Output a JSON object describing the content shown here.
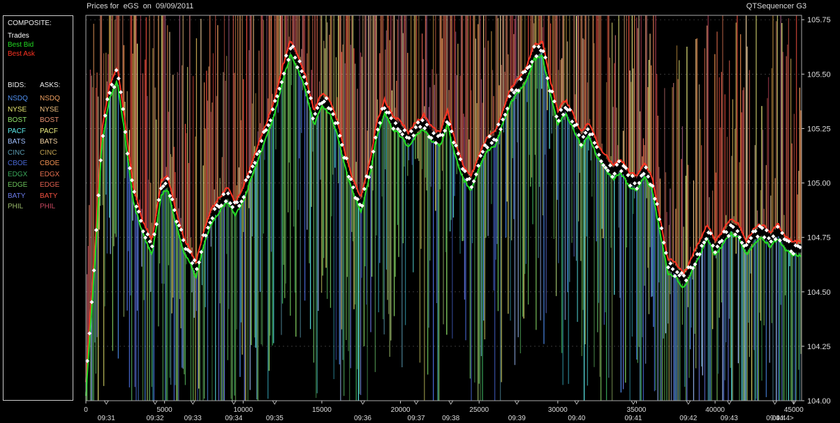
{
  "header": {
    "title": "Prices for  eGS  on  09/09/2011",
    "brand": "QTSequencer G3"
  },
  "legend": {
    "composite_label": "COMPOSITE:",
    "composite": [
      {
        "label": "Trades",
        "color": "#ffffff"
      },
      {
        "label": "Best Bid",
        "color": "#22dd22"
      },
      {
        "label": "Best Ask",
        "color": "#ff3322"
      }
    ],
    "bids_label": "BIDS:",
    "asks_label": "ASKS:",
    "bids": [
      {
        "label": "NSDQ",
        "color": "#4f8ff0"
      },
      {
        "label": "NYSE",
        "color": "#e8e870"
      },
      {
        "label": "BOST",
        "color": "#8ee26a"
      },
      {
        "label": "PACF",
        "color": "#5ef0f0"
      },
      {
        "label": "BATS",
        "color": "#a0c0ff"
      },
      {
        "label": "CINC",
        "color": "#5a9ab0"
      },
      {
        "label": "CBOE",
        "color": "#4a6ad8"
      },
      {
        "label": "EDGX",
        "color": "#3aa85a"
      },
      {
        "label": "EDGE",
        "color": "#6ac05a"
      },
      {
        "label": "BATY",
        "color": "#6a7ae8"
      },
      {
        "label": "PHIL",
        "color": "#9aba6a"
      }
    ],
    "asks": [
      {
        "label": "NSDQ",
        "color": "#f0a060"
      },
      {
        "label": "NYSE",
        "color": "#f0c080"
      },
      {
        "label": "BOST",
        "color": "#e89070"
      },
      {
        "label": "PACF",
        "color": "#f0f080"
      },
      {
        "label": "BATS",
        "color": "#f0d0a0"
      },
      {
        "label": "CINC",
        "color": "#c0a050"
      },
      {
        "label": "CBOE",
        "color": "#f09050"
      },
      {
        "label": "EDGX",
        "color": "#e87050"
      },
      {
        "label": "EDGE",
        "color": "#e06050"
      },
      {
        "label": "BATY",
        "color": "#f05040"
      },
      {
        "label": "PHIL",
        "color": "#c84860"
      }
    ]
  },
  "chart_data": {
    "type": "scatter",
    "title": "Prices for  eGS  on  09/09/2011",
    "xlim": [
      0,
      45500
    ],
    "ylim": [
      104.0,
      105.77
    ],
    "x_ticks": [
      0,
      5000,
      10000,
      15000,
      20000,
      25000,
      30000,
      35000,
      40000,
      45000
    ],
    "y_ticks": [
      104.0,
      104.25,
      104.5,
      104.75,
      105.0,
      105.25,
      105.5,
      105.75
    ],
    "y_tick_labels": [
      "104.00",
      "104.25",
      "104.50",
      "104.75",
      "105.00",
      "105.25",
      "105.50",
      "105.75"
    ],
    "time_ticks": [
      {
        "x": 1300,
        "label": "09:31"
      },
      {
        "x": 4400,
        "label": "09:32"
      },
      {
        "x": 6800,
        "label": "09:33"
      },
      {
        "x": 9400,
        "label": "09:34"
      },
      {
        "x": 12000,
        "label": "09:35"
      },
      {
        "x": 17600,
        "label": "09:36"
      },
      {
        "x": 21000,
        "label": "09:37"
      },
      {
        "x": 23200,
        "label": "09:38"
      },
      {
        "x": 27400,
        "label": "09:39"
      },
      {
        "x": 31200,
        "label": "09:40"
      },
      {
        "x": 34800,
        "label": "09:41"
      },
      {
        "x": 38300,
        "label": "09:42"
      },
      {
        "x": 40900,
        "label": "09:43"
      },
      {
        "x": 43800,
        "label": "09:44"
      },
      {
        "x": 45000,
        "label": "09:44>"
      }
    ],
    "trade_path": [
      [
        0,
        104.06
      ],
      [
        600,
        104.7
      ],
      [
        1000,
        105.2
      ],
      [
        1500,
        105.42
      ],
      [
        2000,
        105.5
      ],
      [
        2400,
        105.3
      ],
      [
        3000,
        104.95
      ],
      [
        3600,
        104.8
      ],
      [
        4200,
        104.7
      ],
      [
        4800,
        104.98
      ],
      [
        5200,
        105.0
      ],
      [
        5700,
        104.85
      ],
      [
        6200,
        104.72
      ],
      [
        6700,
        104.65
      ],
      [
        7000,
        104.6
      ],
      [
        7500,
        104.75
      ],
      [
        8000,
        104.85
      ],
      [
        8500,
        104.9
      ],
      [
        9000,
        104.95
      ],
      [
        9500,
        104.88
      ],
      [
        10000,
        104.95
      ],
      [
        10500,
        105.05
      ],
      [
        11000,
        105.15
      ],
      [
        11500,
        105.25
      ],
      [
        12000,
        105.35
      ],
      [
        12500,
        105.5
      ],
      [
        13000,
        105.62
      ],
      [
        13500,
        105.55
      ],
      [
        14000,
        105.45
      ],
      [
        14500,
        105.3
      ],
      [
        15000,
        105.38
      ],
      [
        15500,
        105.35
      ],
      [
        16000,
        105.25
      ],
      [
        16500,
        105.1
      ],
      [
        17000,
        104.98
      ],
      [
        17500,
        104.9
      ],
      [
        18000,
        105.05
      ],
      [
        18500,
        105.25
      ],
      [
        19000,
        105.35
      ],
      [
        19500,
        105.28
      ],
      [
        20000,
        105.25
      ],
      [
        20500,
        105.2
      ],
      [
        21000,
        105.25
      ],
      [
        21500,
        105.28
      ],
      [
        22000,
        105.22
      ],
      [
        22500,
        105.2
      ],
      [
        23000,
        105.3
      ],
      [
        23500,
        105.15
      ],
      [
        24000,
        105.05
      ],
      [
        24500,
        105.0
      ],
      [
        25000,
        105.1
      ],
      [
        25500,
        105.18
      ],
      [
        26000,
        105.2
      ],
      [
        26500,
        105.3
      ],
      [
        27000,
        105.4
      ],
      [
        27500,
        105.45
      ],
      [
        28000,
        105.5
      ],
      [
        28500,
        105.6
      ],
      [
        29000,
        105.62
      ],
      [
        29500,
        105.45
      ],
      [
        30000,
        105.3
      ],
      [
        30500,
        105.35
      ],
      [
        31000,
        105.28
      ],
      [
        31500,
        105.2
      ],
      [
        32000,
        105.25
      ],
      [
        32500,
        105.15
      ],
      [
        33000,
        105.1
      ],
      [
        33500,
        105.05
      ],
      [
        34000,
        105.08
      ],
      [
        34500,
        105.02
      ],
      [
        35000,
        105.0
      ],
      [
        35500,
        105.06
      ],
      [
        36000,
        105.0
      ],
      [
        36500,
        104.8
      ],
      [
        37000,
        104.62
      ],
      [
        37500,
        104.6
      ],
      [
        38000,
        104.55
      ],
      [
        38500,
        104.62
      ],
      [
        39000,
        104.7
      ],
      [
        39500,
        104.78
      ],
      [
        40000,
        104.7
      ],
      [
        40500,
        104.75
      ],
      [
        41000,
        104.8
      ],
      [
        41500,
        104.78
      ],
      [
        42000,
        104.7
      ],
      [
        42500,
        104.76
      ],
      [
        43000,
        104.78
      ],
      [
        43500,
        104.74
      ],
      [
        44000,
        104.78
      ],
      [
        44500,
        104.72
      ],
      [
        45000,
        104.7
      ]
    ]
  }
}
